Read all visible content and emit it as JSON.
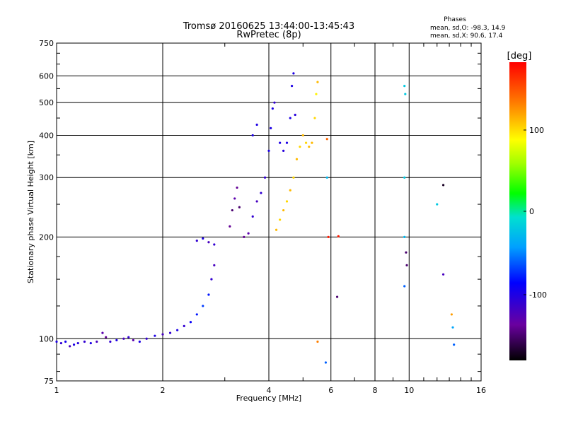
{
  "chart_data": {
    "type": "scatter",
    "title": "Tromsø 20160625 13:44:00-13:45:43",
    "subtitle": "RwPretec (8p)",
    "xlabel": "Frequency [MHz]",
    "ylabel": "Stationary phase Virtual Height [km]",
    "xscale": "log",
    "yscale": "log",
    "xlim": [
      1,
      16
    ],
    "ylim": [
      75,
      750
    ],
    "xticks": [
      "1",
      "2",
      "4",
      "6",
      "8",
      "10",
      "16"
    ],
    "yticks": [
      "75",
      "100",
      "200",
      "300",
      "400",
      "500",
      "600",
      "750"
    ],
    "grid": true,
    "phase_stats": {
      "heading": "Phases",
      "line_o": "mean, sd,O: -98.3, 14.9",
      "line_x": "mean, sd,X:  90.6, 17.4"
    },
    "colorbar": {
      "label": "[deg]",
      "ticks": [
        "100",
        "0",
        "-100"
      ],
      "range": [
        -180,
        180
      ]
    },
    "series": [
      {
        "points": [
          [
            1.0,
            98,
            -100
          ],
          [
            1.03,
            97,
            -110
          ],
          [
            1.06,
            98,
            -95
          ],
          [
            1.09,
            95,
            -120
          ],
          [
            1.12,
            96,
            -100
          ],
          [
            1.15,
            97,
            -105
          ],
          [
            1.2,
            98,
            -110
          ],
          [
            1.25,
            97,
            -100
          ],
          [
            1.3,
            98,
            -120
          ],
          [
            1.35,
            104,
            -130
          ],
          [
            1.38,
            101,
            -140
          ],
          [
            1.42,
            98,
            -110
          ],
          [
            1.48,
            99,
            -100
          ],
          [
            1.55,
            100,
            -120
          ],
          [
            1.6,
            101,
            -110
          ],
          [
            1.65,
            99,
            -130
          ],
          [
            1.72,
            98,
            -100
          ],
          [
            1.8,
            100,
            -110
          ],
          [
            1.9,
            102,
            -100
          ],
          [
            2.0,
            103,
            -120
          ],
          [
            2.1,
            104,
            -110
          ],
          [
            2.2,
            106,
            -100
          ],
          [
            2.3,
            109,
            -110
          ],
          [
            2.4,
            112,
            -90
          ],
          [
            2.5,
            118,
            -80
          ],
          [
            2.6,
            125,
            -70
          ],
          [
            2.7,
            135,
            -80
          ],
          [
            2.75,
            150,
            -110
          ],
          [
            2.8,
            165,
            -120
          ],
          [
            2.5,
            195,
            -110
          ],
          [
            2.6,
            198,
            -100
          ],
          [
            2.7,
            193,
            -120
          ],
          [
            2.8,
            190,
            -110
          ],
          [
            3.1,
            215,
            -140
          ],
          [
            3.15,
            240,
            -150
          ],
          [
            3.2,
            260,
            -130
          ],
          [
            3.25,
            280,
            -140
          ],
          [
            3.3,
            245,
            -150
          ],
          [
            3.4,
            200,
            -140
          ],
          [
            3.5,
            205,
            -130
          ],
          [
            3.6,
            230,
            -110
          ],
          [
            3.7,
            255,
            -120
          ],
          [
            3.8,
            270,
            -110
          ],
          [
            3.9,
            300,
            -110
          ],
          [
            4.0,
            360,
            -100
          ],
          [
            4.05,
            420,
            -100
          ],
          [
            4.1,
            480,
            -100
          ],
          [
            4.15,
            500,
            -110
          ],
          [
            4.3,
            380,
            -100
          ],
          [
            4.4,
            360,
            -105
          ],
          [
            4.5,
            380,
            -100
          ],
          [
            4.6,
            450,
            -100
          ],
          [
            4.65,
            560,
            -100
          ],
          [
            4.7,
            610,
            -100
          ],
          [
            4.75,
            460,
            -105
          ],
          [
            3.6,
            400,
            -100
          ],
          [
            3.7,
            430,
            -100
          ],
          [
            4.2,
            210,
            110
          ],
          [
            4.3,
            225,
            100
          ],
          [
            4.4,
            240,
            110
          ],
          [
            4.5,
            255,
            100
          ],
          [
            4.6,
            275,
            110
          ],
          [
            4.7,
            300,
            100
          ],
          [
            4.8,
            340,
            110
          ],
          [
            4.9,
            370,
            100
          ],
          [
            5.0,
            400,
            110
          ],
          [
            5.1,
            380,
            100
          ],
          [
            5.2,
            370,
            110
          ],
          [
            5.3,
            380,
            110
          ],
          [
            5.4,
            450,
            100
          ],
          [
            5.45,
            530,
            90
          ],
          [
            5.5,
            575,
            110
          ],
          [
            5.85,
            390,
            140
          ],
          [
            5.85,
            300,
            -30
          ],
          [
            5.9,
            200,
            170
          ],
          [
            6.3,
            201,
            170
          ],
          [
            6.25,
            133,
            -150
          ],
          [
            9.7,
            560,
            -20
          ],
          [
            9.75,
            530,
            -20
          ],
          [
            9.7,
            300,
            -20
          ],
          [
            9.7,
            200,
            -30
          ],
          [
            9.7,
            143,
            -60
          ],
          [
            9.8,
            180,
            -150
          ],
          [
            9.85,
            165,
            -150
          ],
          [
            12.0,
            250,
            -20
          ],
          [
            12.5,
            285,
            -170
          ],
          [
            12.5,
            155,
            -120
          ],
          [
            13.3,
            108,
            -40
          ],
          [
            13.4,
            96,
            -60
          ],
          [
            13.2,
            118,
            120
          ],
          [
            5.5,
            98,
            130
          ],
          [
            5.8,
            85,
            -60
          ]
        ]
      }
    ]
  }
}
